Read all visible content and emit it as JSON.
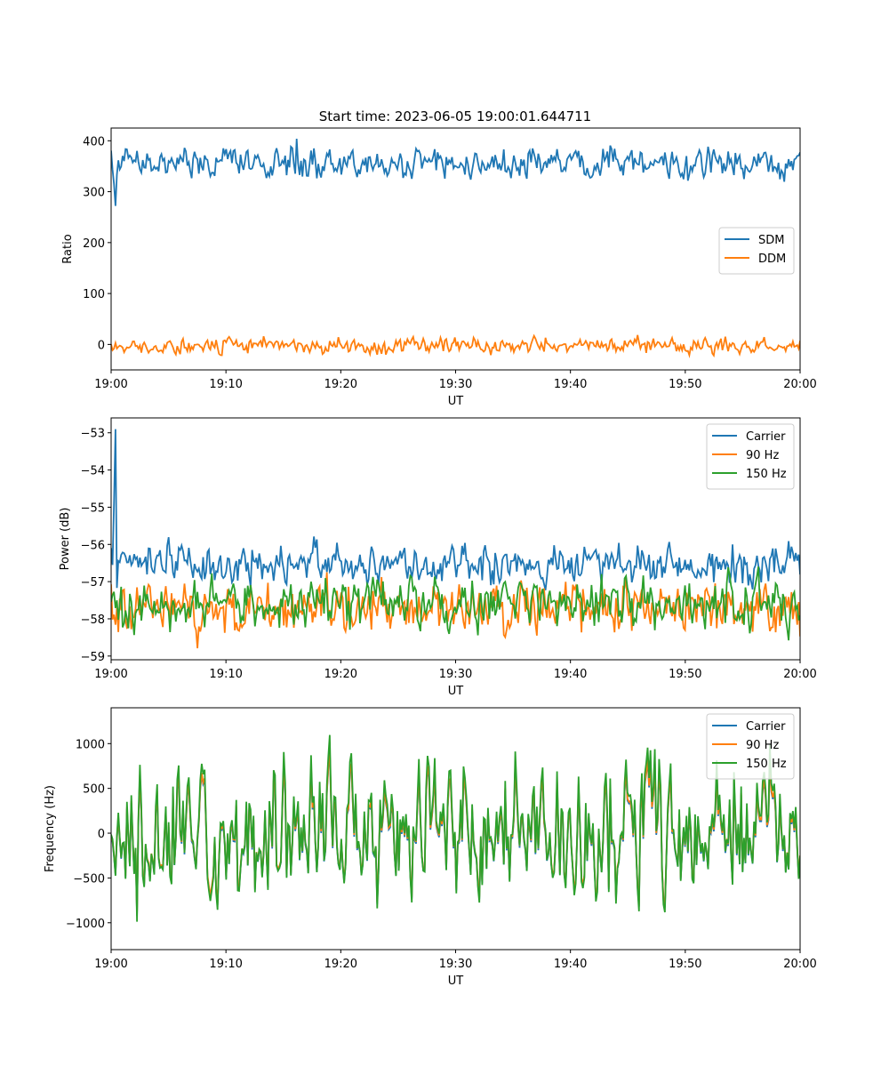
{
  "title": "Start time: 2023-06-05 19:00:01.644711",
  "colors": {
    "blue": "#1f77b4",
    "orange": "#ff7f0e",
    "green": "#2ca02c"
  },
  "chart_data": [
    {
      "type": "line",
      "x_range": [
        "19:00",
        "20:00"
      ],
      "xlabel": "UT",
      "ylabel": "Ratio",
      "ylim": [
        -50,
        425
      ],
      "x_ticks": [
        "19:00",
        "19:10",
        "19:20",
        "19:30",
        "19:40",
        "19:50",
        "20:00"
      ],
      "y_ticks": [
        "400",
        "300",
        "200",
        "100",
        "0"
      ],
      "y_tick_values": [
        400,
        300,
        200,
        100,
        0
      ],
      "legend_position": "center-right",
      "series": [
        {
          "name": "SDM",
          "color": "#1f77b4",
          "mean": 355,
          "noise": 18,
          "start_spike": 272,
          "extra_spike": {
            "x_min": 16.2,
            "value": 404
          },
          "seed": 11
        },
        {
          "name": "DDM",
          "color": "#ff7f0e",
          "mean": -2,
          "noise": 9,
          "seed": 23
        }
      ]
    },
    {
      "type": "line",
      "x_range": [
        "19:00",
        "20:00"
      ],
      "xlabel": "UT",
      "ylabel": "Power (dB)",
      "ylim": [
        -59.1,
        -52.6
      ],
      "x_ticks": [
        "19:00",
        "19:10",
        "19:20",
        "19:30",
        "19:40",
        "19:50",
        "20:00"
      ],
      "y_ticks": [
        "−53",
        "−54",
        "−55",
        "−56",
        "−57",
        "−58",
        "−59"
      ],
      "y_tick_values": [
        -53,
        -54,
        -55,
        -56,
        -57,
        -58,
        -59
      ],
      "legend_position": "top-right",
      "series": [
        {
          "name": "Carrier",
          "color": "#1f77b4",
          "mean": -56.5,
          "noise": 0.3,
          "start_spike": -52.9,
          "seed": 37
        },
        {
          "name": "90 Hz",
          "color": "#ff7f0e",
          "mean": -57.7,
          "noise": 0.4,
          "seed": 41
        },
        {
          "name": "150 Hz",
          "color": "#2ca02c",
          "mean": -57.6,
          "noise": 0.4,
          "seed": 53
        }
      ]
    },
    {
      "type": "line",
      "x_range": [
        "19:00",
        "20:00"
      ],
      "xlabel": "UT",
      "ylabel": "Frequency (Hz)",
      "ylim": [
        -1300,
        1400
      ],
      "x_ticks": [
        "19:00",
        "19:10",
        "19:20",
        "19:30",
        "19:40",
        "19:50",
        "20:00"
      ],
      "y_ticks": [
        "1000",
        "500",
        "0",
        "−500",
        "−1000"
      ],
      "y_tick_values": [
        1000,
        500,
        0,
        -500,
        -1000
      ],
      "legend_position": "top-right",
      "series": [
        {
          "name": "Carrier",
          "color": "#1f77b4",
          "mean": 0,
          "noise": 380,
          "seed": 71
        },
        {
          "name": "90 Hz",
          "color": "#ff7f0e",
          "mean": 20,
          "noise": 380,
          "seed": 71
        },
        {
          "name": "150 Hz",
          "color": "#2ca02c",
          "mean": 45,
          "noise": 380,
          "seed": 71
        }
      ]
    }
  ]
}
